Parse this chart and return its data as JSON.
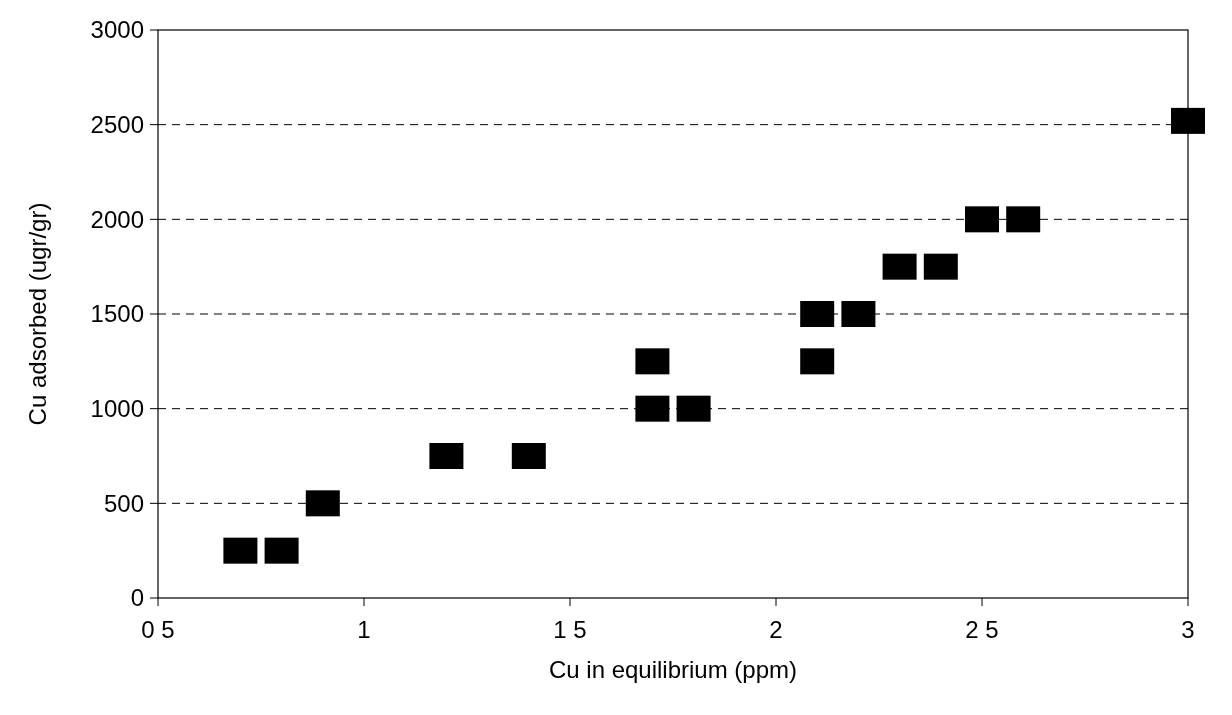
{
  "chart_data": {
    "type": "scatter",
    "xlabel": "Cu in equilibrium (ppm)",
    "ylabel": "Cu adsorbed (ugr/gr)",
    "x": [
      0.7,
      0.8,
      0.9,
      1.2,
      1.4,
      1.7,
      1.7,
      1.8,
      2.1,
      2.1,
      2.2,
      2.3,
      2.4,
      2.5,
      2.6,
      3.0
    ],
    "series": [
      {
        "color": "#000000",
        "values": [
          250,
          250,
          500,
          750,
          750,
          1250,
          1000,
          1000,
          1500,
          1250,
          1500,
          1750,
          1750,
          2000,
          2000,
          2520
        ]
      }
    ],
    "xlim": [
      0.5,
      3
    ],
    "ylim": [
      0,
      3000
    ],
    "xticks": [
      {
        "value": 0.5,
        "label": "0 5"
      },
      1,
      {
        "value": 1.5,
        "label": "1 5"
      },
      2,
      {
        "value": 2.5,
        "label": "2 5"
      },
      3
    ],
    "yticks": [
      0,
      500,
      1000,
      1500,
      2000,
      2500,
      3000
    ],
    "grid": "y",
    "marker": "square"
  }
}
